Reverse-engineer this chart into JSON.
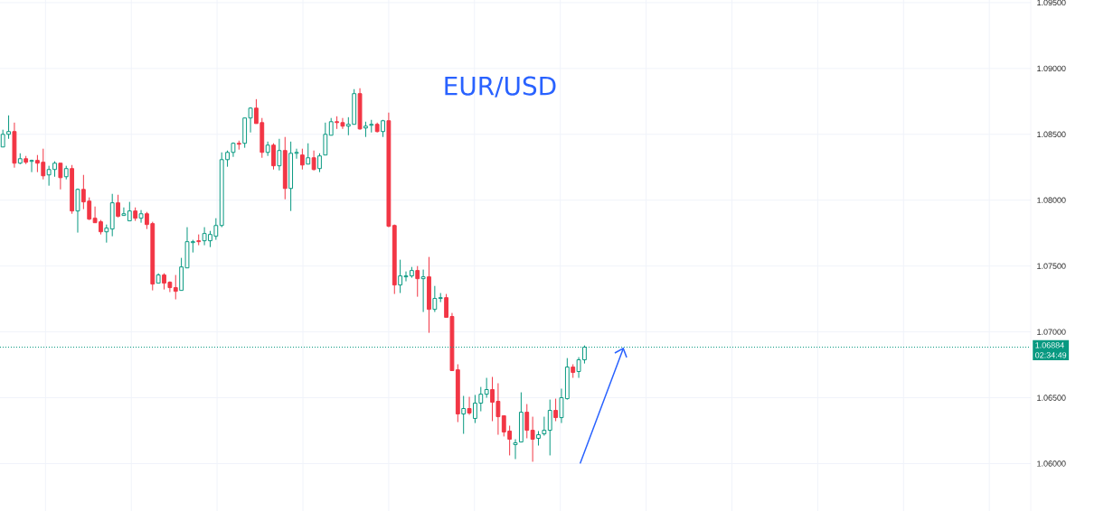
{
  "chart_data": {
    "type": "candlestick",
    "title": "EUR/USD",
    "categories": [
      null,
      null,
      null,
      null,
      null,
      null,
      null,
      null,
      null,
      null,
      null,
      null,
      null,
      null,
      null,
      null,
      null,
      null,
      null,
      null,
      null,
      null,
      null,
      null,
      null,
      null,
      null,
      null,
      null,
      null,
      null,
      null,
      null,
      null,
      null,
      null,
      null,
      null,
      null,
      null,
      null,
      null,
      null,
      null,
      null,
      null,
      null,
      null,
      null,
      null,
      null,
      null,
      null,
      null,
      null,
      null,
      null,
      null,
      null,
      null,
      null,
      null,
      null,
      null,
      null,
      null,
      null,
      null,
      null,
      null,
      null,
      null,
      null,
      null,
      null,
      null,
      null,
      null,
      null,
      null,
      null,
      null,
      null,
      null,
      null,
      null,
      null,
      null,
      null,
      null,
      null,
      null,
      null,
      null,
      null,
      null,
      null,
      null,
      null,
      null,
      null,
      null,
      null,
      null,
      null,
      null,
      null,
      null,
      null,
      null,
      null,
      null,
      null,
      null,
      null,
      null,
      null,
      null,
      null,
      null,
      null,
      null,
      null,
      null,
      null,
      null,
      null,
      null,
      null,
      null,
      null,
      null,
      null,
      null,
      null,
      null,
      null,
      null,
      null,
      null,
      null,
      null,
      null,
      null,
      null,
      null,
      null,
      null,
      null,
      null,
      null,
      null,
      null,
      null,
      null,
      null,
      null,
      null,
      null,
      null,
      null,
      null,
      null,
      null,
      null,
      null,
      null,
      null,
      null,
      null,
      null,
      null,
      null,
      null,
      null,
      null,
      null,
      null,
      null
    ],
    "ohlc": [
      [
        1.08404,
        1.08535,
        1.08404,
        1.085
      ],
      [
        1.085,
        1.08644,
        1.08466,
        1.08521
      ],
      [
        1.08521,
        1.08589,
        1.08247,
        1.08281
      ],
      [
        1.08281,
        1.08356,
        1.08274,
        1.08315
      ],
      [
        1.08315,
        1.08336,
        1.08274,
        1.08288
      ],
      [
        1.08295,
        1.08308,
        1.08213,
        1.08302
      ],
      [
        1.08302,
        1.08343,
        1.08213,
        1.08281
      ],
      [
        1.08288,
        1.08391,
        1.08158,
        1.08185
      ],
      [
        1.08192,
        1.08261,
        1.0811,
        1.08233
      ],
      [
        1.08233,
        1.08295,
        1.08178,
        1.08281
      ],
      [
        1.08281,
        1.08281,
        1.08082,
        1.08171
      ],
      [
        1.08178,
        1.08261,
        1.08158,
        1.0824
      ],
      [
        1.0824,
        1.08267,
        1.07897,
        1.07918
      ],
      [
        1.07918,
        1.08089,
        1.07754,
        1.08082
      ],
      [
        1.08082,
        1.08192,
        1.07932,
        1.07987
      ],
      [
        1.07993,
        1.08021,
        1.0785,
        1.07856
      ],
      [
        1.07863,
        1.07952,
        1.07829,
        1.07829
      ],
      [
        1.07836,
        1.0785,
        1.0774,
        1.0776
      ],
      [
        1.0776,
        1.07815,
        1.07678,
        1.07788
      ],
      [
        1.07781,
        1.08048,
        1.07726,
        1.0798
      ],
      [
        1.0798,
        1.08041,
        1.0787,
        1.07877
      ],
      [
        1.07884,
        1.07945,
        1.07884,
        1.07897
      ],
      [
        1.07843,
        1.07987,
        1.07843,
        1.07918
      ],
      [
        1.07918,
        1.07945,
        1.07843,
        1.07863
      ],
      [
        1.07863,
        1.07925,
        1.07829,
        1.07897
      ],
      [
        1.07897,
        1.07911,
        1.07781,
        1.07815
      ],
      [
        1.07822,
        1.07836,
        1.07315,
        1.07363
      ],
      [
        1.0737,
        1.07445,
        1.0737,
        1.07432
      ],
      [
        1.07432,
        1.07445,
        1.07322,
        1.0737
      ],
      [
        1.07377,
        1.07384,
        1.07302,
        1.07336
      ],
      [
        1.07336,
        1.07432,
        1.07247,
        1.07308
      ],
      [
        1.07315,
        1.07562,
        1.07315,
        1.07493
      ],
      [
        1.07486,
        1.07795,
        1.07486,
        1.07685
      ],
      [
        1.07678,
        1.07699,
        1.07603,
        1.07685
      ],
      [
        1.07692,
        1.0774,
        1.07658,
        1.07685
      ],
      [
        1.07692,
        1.07795,
        1.07658,
        1.07747
      ],
      [
        1.07692,
        1.07767,
        1.07644,
        1.0774
      ],
      [
        1.07726,
        1.07863,
        1.07699,
        1.07808
      ],
      [
        1.07808,
        1.08363,
        1.07795,
        1.08308
      ],
      [
        1.08308,
        1.08377,
        1.08254,
        1.08363
      ],
      [
        1.08363,
        1.08439,
        1.08329,
        1.08432
      ],
      [
        1.08432,
        1.08452,
        1.08384,
        1.08425
      ],
      [
        1.08432,
        1.08624,
        1.08398,
        1.08624
      ],
      [
        1.08624,
        1.08706,
        1.08514,
        1.08699
      ],
      [
        1.08699,
        1.08767,
        1.08582,
        1.08582
      ],
      [
        1.08589,
        1.08624,
        1.08322,
        1.08363
      ],
      [
        1.08363,
        1.08445,
        1.08336,
        1.08418
      ],
      [
        1.08418,
        1.08432,
        1.08233,
        1.08261
      ],
      [
        1.08261,
        1.08466,
        1.08226,
        1.08377
      ],
      [
        1.08377,
        1.0848,
        1.08007,
        1.08089
      ],
      [
        1.08089,
        1.08445,
        1.07918,
        1.08356
      ],
      [
        1.08356,
        1.08391,
        1.08315,
        1.08363
      ],
      [
        1.08343,
        1.08391,
        1.08233,
        1.08267
      ],
      [
        1.08274,
        1.08432,
        1.08274,
        1.08322
      ],
      [
        1.08322,
        1.08377,
        1.08226,
        1.08233
      ],
      [
        1.0824,
        1.08356,
        1.08213,
        1.08336
      ],
      [
        1.08343,
        1.08589,
        1.08343,
        1.085
      ],
      [
        1.08493,
        1.08624,
        1.08493,
        1.08596
      ],
      [
        1.08596,
        1.08637,
        1.08541,
        1.08589
      ],
      [
        1.08589,
        1.08624,
        1.08541,
        1.08562
      ],
      [
        1.08562,
        1.0863,
        1.08493,
        1.08576
      ],
      [
        1.08576,
        1.08843,
        1.08576,
        1.08809
      ],
      [
        1.08809,
        1.0885,
        1.08535,
        1.08541
      ],
      [
        1.08548,
        1.08596,
        1.0848,
        1.08562
      ],
      [
        1.08569,
        1.0861,
        1.08514,
        1.08576
      ],
      [
        1.08576,
        1.08589,
        1.08514,
        1.08521
      ],
      [
        1.08521,
        1.0861,
        1.0848,
        1.08603
      ],
      [
        1.08603,
        1.08665,
        1.07795,
        1.07802
      ],
      [
        1.07808,
        1.07815,
        1.07288,
        1.07356
      ],
      [
        1.07356,
        1.07548,
        1.07295,
        1.07425
      ],
      [
        1.07418,
        1.07459,
        1.07384,
        1.07425
      ],
      [
        1.07425,
        1.07493,
        1.07411,
        1.07466
      ],
      [
        1.07466,
        1.075,
        1.07267,
        1.07404
      ],
      [
        1.07404,
        1.07473,
        1.07151,
        1.07418
      ],
      [
        1.07418,
        1.07569,
        1.06993,
        1.07171
      ],
      [
        1.07171,
        1.07349,
        1.07151,
        1.07254
      ],
      [
        1.07254,
        1.07295,
        1.07226,
        1.0726
      ],
      [
        1.0726,
        1.07288,
        1.0711,
        1.0711
      ],
      [
        1.07117,
        1.07144,
        1.06706,
        1.06706
      ],
      [
        1.06712,
        1.06754,
        1.06315,
        1.06377
      ],
      [
        1.06377,
        1.06514,
        1.06226,
        1.06418
      ],
      [
        1.06418,
        1.06507,
        1.0637,
        1.06384
      ],
      [
        1.06343,
        1.06521,
        1.06308,
        1.06459
      ],
      [
        1.06459,
        1.06582,
        1.06397,
        1.06527
      ],
      [
        1.06527,
        1.06651,
        1.065,
        1.06562
      ],
      [
        1.06562,
        1.06658,
        1.06322,
        1.06466
      ],
      [
        1.06473,
        1.0661,
        1.06219,
        1.06356
      ],
      [
        1.06363,
        1.06363,
        1.06206,
        1.0624
      ],
      [
        1.06247,
        1.06288,
        1.06062,
        1.06185
      ],
      [
        1.06144,
        1.06185,
        1.06034,
        1.06158
      ],
      [
        1.06164,
        1.06541,
        1.06164,
        1.0639
      ],
      [
        1.0639,
        1.06452,
        1.06192,
        1.06253
      ],
      [
        1.06253,
        1.06356,
        1.06014,
        1.06185
      ],
      [
        1.06192,
        1.06247,
        1.06137,
        1.06219
      ],
      [
        1.06226,
        1.06356,
        1.06212,
        1.06253
      ],
      [
        1.06253,
        1.06486,
        1.06062,
        1.06404
      ],
      [
        1.06404,
        1.06493,
        1.06322,
        1.06349
      ],
      [
        1.06349,
        1.06569,
        1.06308,
        1.065
      ],
      [
        1.06493,
        1.06801,
        1.06486,
        1.06733
      ],
      [
        1.06733,
        1.06754,
        1.06651,
        1.06692
      ],
      [
        1.06699,
        1.06808,
        1.06651,
        1.06788
      ],
      [
        1.06788,
        1.06897,
        1.0676,
        1.06884
      ],
      null,
      null,
      null,
      null,
      null,
      null,
      null,
      null,
      null,
      null,
      null,
      null,
      null,
      null,
      null,
      null,
      null,
      null,
      null,
      null,
      null,
      null,
      null,
      null,
      null,
      null,
      null,
      null,
      null,
      null,
      null,
      null,
      null,
      null,
      null,
      null,
      null,
      null,
      null,
      null,
      null,
      null,
      null,
      null,
      null,
      null,
      null,
      null,
      null,
      null,
      null,
      null,
      null,
      null,
      null,
      null,
      null,
      null,
      null,
      null,
      null,
      null,
      null,
      null,
      null,
      null,
      null,
      null,
      null,
      null,
      null,
      null,
      null,
      null,
      null,
      null,
      null
    ],
    "ylim": [
      1.0564,
      1.0952
    ],
    "yticks": [
      {
        "value": 1.06,
        "label": "1.06000"
      },
      {
        "value": 1.065,
        "label": "1.06500"
      },
      {
        "value": 1.07,
        "label": "1.07000"
      },
      {
        "value": 1.075,
        "label": "1.07500"
      },
      {
        "value": 1.08,
        "label": "1.08000"
      },
      {
        "value": 1.085,
        "label": "1.08500"
      },
      {
        "value": 1.09,
        "label": "1.09000"
      },
      {
        "value": 1.095,
        "label": "1.09500"
      }
    ],
    "tick_labels": "y",
    "grid": true,
    "ref_lines": [
      {
        "axis": "y",
        "value": 1.06884,
        "label": "1.06884",
        "color": "#089981",
        "line_style": "dotted"
      }
    ],
    "annotations": [
      "02:34:49"
    ]
  }
}
